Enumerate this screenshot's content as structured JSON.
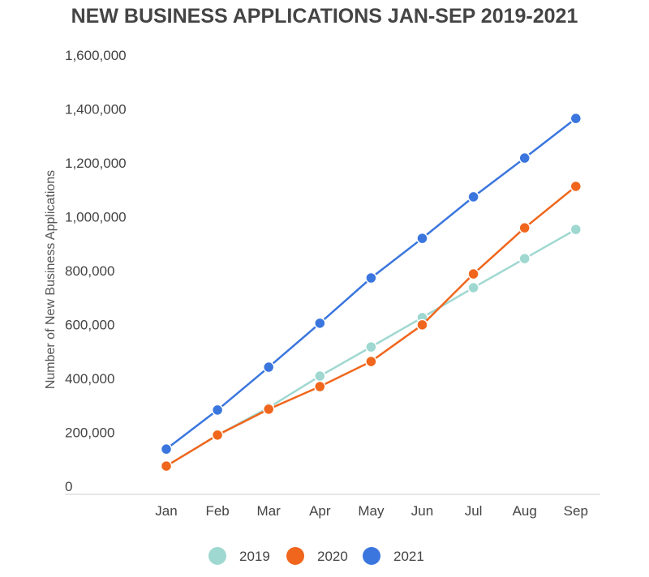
{
  "chart_data": {
    "type": "line",
    "title": "NEW BUSINESS APPLICATIONS JAN-SEP 2019-2021",
    "xlabel": "",
    "ylabel": "Number of New Business Applications",
    "categories": [
      "Jan",
      "Feb",
      "Mar",
      "Apr",
      "May",
      "Jun",
      "Jul",
      "Aug",
      "Sep"
    ],
    "ylim": [
      0,
      1600000
    ],
    "yticks": [
      0,
      200000,
      400000,
      600000,
      800000,
      1000000,
      1200000,
      1400000,
      1600000
    ],
    "ytick_labels": [
      "0",
      "200,000",
      "400,000",
      "600,000",
      "800,000",
      "1,000,000",
      "1,200,000",
      "1,400,000",
      "1,600,000"
    ],
    "grid": false,
    "legend_position": "bottom",
    "series": [
      {
        "name": "2019",
        "color": "#9fd8d1",
        "values": [
          105000,
          220000,
          322000,
          439000,
          547000,
          656000,
          767000,
          875000,
          983000
        ]
      },
      {
        "name": "2020",
        "color": "#f0661c",
        "values": [
          105000,
          220000,
          316000,
          400000,
          493000,
          629000,
          818000,
          989000,
          1143000
        ]
      },
      {
        "name": "2021",
        "color": "#3a76de",
        "values": [
          168000,
          313000,
          472000,
          635000,
          803000,
          950000,
          1104000,
          1248000,
          1395000
        ]
      }
    ]
  }
}
